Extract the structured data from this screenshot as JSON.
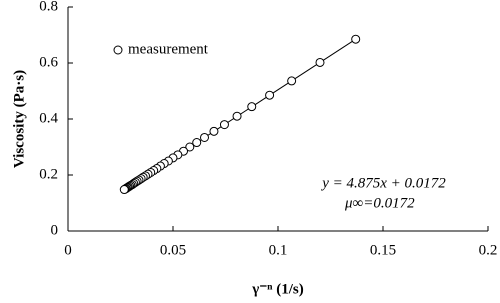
{
  "chart_data": {
    "type": "scatter",
    "xlabel": "γ⁻ⁿ (1/s)",
    "ylabel": "Viscosity (Pa·s)",
    "xlim": [
      0,
      0.2
    ],
    "xticks": [
      0,
      0.05,
      0.1,
      0.15,
      0.2
    ],
    "ylim": [
      0,
      0.8
    ],
    "yticks": [
      0,
      0.2,
      0.4,
      0.6,
      0.8
    ],
    "grid": false,
    "legend": "upper left",
    "series": [
      {
        "name": "measurement",
        "mode": "markers",
        "color": "#000000",
        "x": [
          0.137,
          0.12,
          0.1065,
          0.096,
          0.0875,
          0.0805,
          0.0745,
          0.0695,
          0.065,
          0.0613,
          0.058,
          0.055,
          0.0523,
          0.05,
          0.0478,
          0.0458,
          0.044,
          0.0423,
          0.0408,
          0.0394,
          0.0381,
          0.0369,
          0.0358,
          0.0348,
          0.0338,
          0.0329,
          0.0321,
          0.0313,
          0.0306,
          0.0299,
          0.0293,
          0.0287,
          0.0282,
          0.0277,
          0.0272,
          0.0268
        ],
        "values": [
          0.685,
          0.602,
          0.536,
          0.485,
          0.444,
          0.41,
          0.38,
          0.356,
          0.334,
          0.316,
          0.3,
          0.285,
          0.272,
          0.261,
          0.25,
          0.241,
          0.232,
          0.223,
          0.216,
          0.209,
          0.203,
          0.197,
          0.192,
          0.187,
          0.182,
          0.178,
          0.174,
          0.17,
          0.166,
          0.163,
          0.16,
          0.157,
          0.155,
          0.152,
          0.15,
          0.148
        ]
      },
      {
        "mode": "line",
        "color": "#000000",
        "x": [
          0.0265,
          0.137
        ],
        "values": [
          0.146,
          0.685
        ]
      }
    ],
    "annotations": [
      "y = 4.875x + 0.0172",
      "μ∞=0.0172"
    ]
  }
}
